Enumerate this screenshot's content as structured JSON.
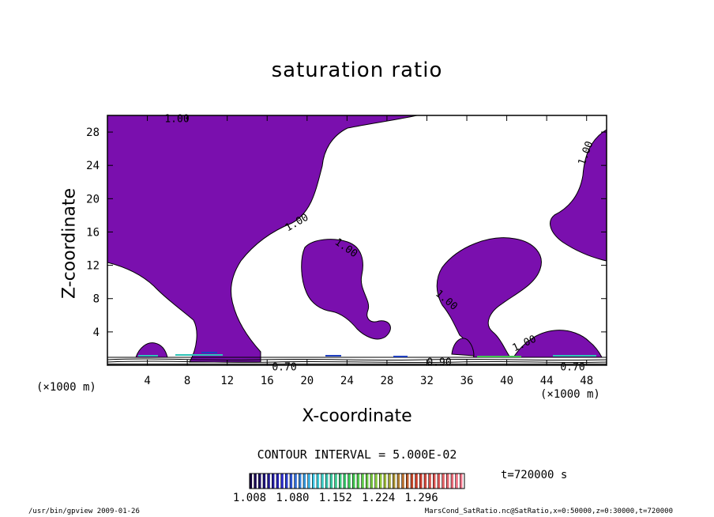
{
  "chart_data": {
    "type": "contour",
    "title": "saturation ratio",
    "xlabel": "X-coordinate",
    "ylabel": "Z-coordinate",
    "x_unit": "(×1000 m)",
    "xlim": [
      0,
      50
    ],
    "ylim": [
      0,
      30
    ],
    "x_ticks": [
      4,
      8,
      12,
      16,
      20,
      24,
      28,
      32,
      36,
      40,
      44,
      48
    ],
    "y_ticks": [
      4,
      8,
      12,
      16,
      20,
      24,
      28
    ],
    "contour_interval": "CONTOUR INTERVAL = 5.000E-02",
    "contour_labels": [
      "1.00",
      "1.00",
      "1.00",
      "1.00",
      "1.00",
      "1.00",
      "0.70",
      "0.90",
      "0.70"
    ],
    "shaded_region_color": "#7a0fae",
    "colorbar": {
      "tick_labels": [
        "1.008",
        "1.080",
        "1.152",
        "1.224",
        "1.296"
      ],
      "range": [
        1.008,
        1.368
      ]
    },
    "time_label": "t=720000 s",
    "footer_left": "/usr/bin/gpview   2009-01-26",
    "footer_right": "MarsCond_SatRatio.nc@SatRatio,x=0:50000,z=0:30000,t=720000"
  }
}
